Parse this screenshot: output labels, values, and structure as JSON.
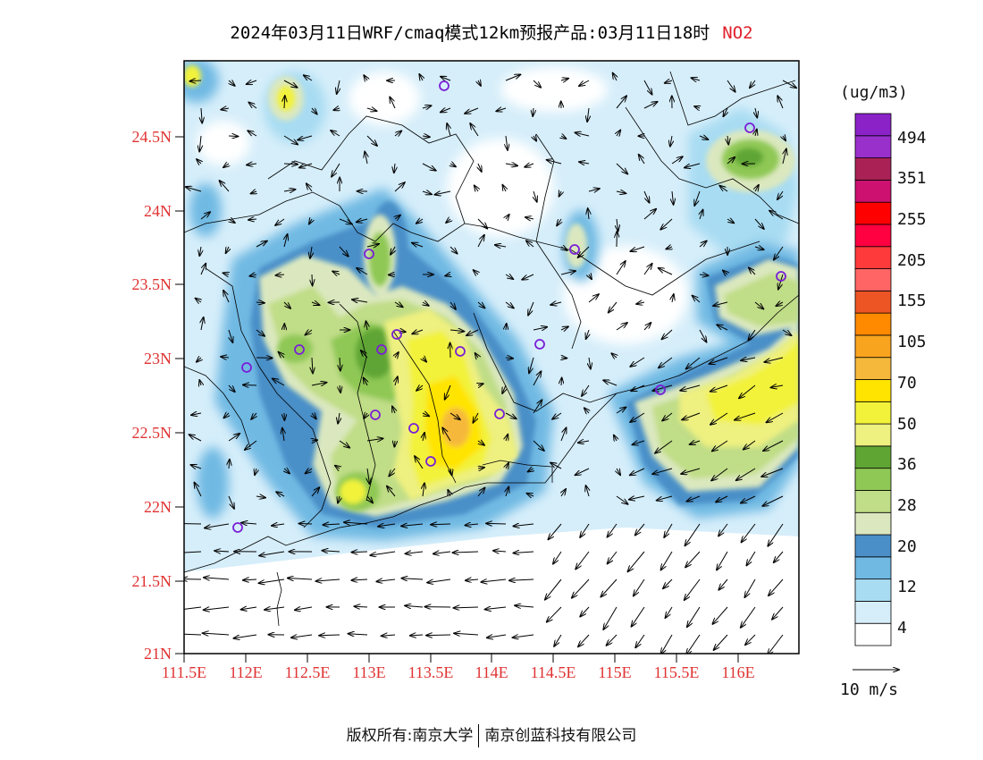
{
  "title": {
    "main": "2024年03月11日WRF/cmaq模式12km预报产品:03月11日18时",
    "species": "NO2"
  },
  "map": {
    "lat_labels": [
      "24.5N",
      "24N",
      "23.5N",
      "23N",
      "22.5N",
      "22N",
      "21.5N",
      "21N"
    ],
    "lon_labels": [
      "111.5E",
      "112E",
      "112.5E",
      "113E",
      "113.5E",
      "114E",
      "114.5E",
      "115E",
      "115.5E",
      "116E"
    ],
    "label_color": "#e03232"
  },
  "colorbar": {
    "unit": "(ug/m3)",
    "labels": [
      "494",
      "351",
      "255",
      "205",
      "155",
      "105",
      "70",
      "50",
      "36",
      "28",
      "20",
      "12",
      "4"
    ],
    "colors": [
      "#ffffff",
      "#d6eefa",
      "#a8dcf2",
      "#6fb9e3",
      "#4a8fc8",
      "#dbe8bf",
      "#c0dd87",
      "#8fc855",
      "#5fa534",
      "#eef080",
      "#f2f23a",
      "#ffe400",
      "#f5b83a",
      "#f9a41e",
      "#ff8a00",
      "#ee5525",
      "#ff6565",
      "#ff3a3a",
      "#ff0040",
      "#ff0000",
      "#cc1170",
      "#aa2255",
      "#9a30cc",
      "#8a22c8"
    ]
  },
  "wind_scale": {
    "label": "10 m/s"
  },
  "copyright": {
    "left": "版权所有:南京大学",
    "right": "南京创蓝科技有限公司"
  }
}
